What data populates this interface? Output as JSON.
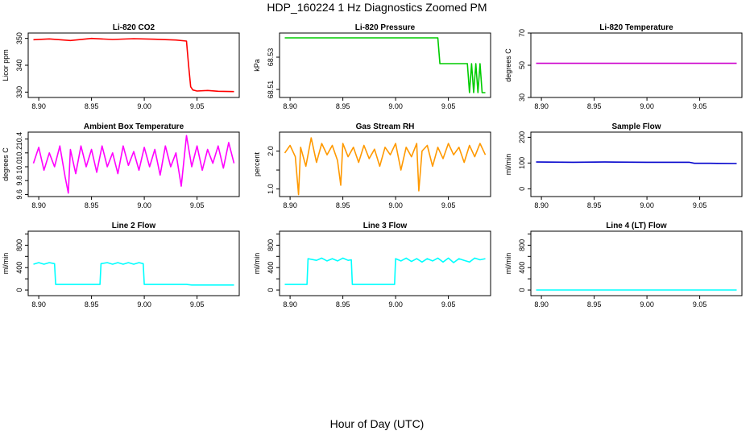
{
  "page": {
    "title": "HDP_160224  1 Hz Diagnostics Zoomed PM",
    "xlabel": "Hour of Day (UTC)"
  },
  "chart_data": [
    {
      "type": "line",
      "title": "Li-820 CO2",
      "ylabel": "Licor ppm",
      "color": "#ff0000",
      "xlim": [
        8.89,
        9.09
      ],
      "xticks": [
        8.9,
        8.95,
        9.0,
        9.05
      ],
      "xtick_labels": [
        "8.90",
        "8.95",
        "9.00",
        "9.05"
      ],
      "ylim": [
        328,
        352
      ],
      "yticks": [
        330,
        340,
        350
      ],
      "ytick_labels": [
        "330",
        "340",
        "350"
      ],
      "series": [
        {
          "x": [
            8.895,
            8.91,
            8.93,
            8.95,
            8.97,
            8.99,
            9.01,
            9.03,
            9.04,
            9.042,
            9.044,
            9.046,
            9.05,
            9.06,
            9.07,
            9.085
          ],
          "y": [
            349.5,
            349.8,
            349.2,
            350.0,
            349.6,
            349.9,
            349.7,
            349.4,
            349.0,
            340.0,
            332.0,
            330.8,
            330.4,
            330.6,
            330.3,
            330.2
          ]
        }
      ]
    },
    {
      "type": "line",
      "title": "Li-820 Pressure",
      "ylabel": "kPa",
      "color": "#00cc00",
      "xlim": [
        8.89,
        9.09
      ],
      "xticks": [
        8.9,
        8.95,
        9.0,
        9.05
      ],
      "xtick_labels": [
        "8.90",
        "8.95",
        "9.00",
        "9.05"
      ],
      "ylim": [
        68.505,
        68.545
      ],
      "yticks": [
        68.51,
        68.53
      ],
      "ytick_labels": [
        "68.51",
        "68.53"
      ],
      "series": [
        {
          "x": [
            8.895,
            8.93,
            8.97,
            9.0,
            9.02,
            9.04,
            9.042,
            9.045,
            9.06,
            9.068,
            9.07,
            9.072,
            9.074,
            9.076,
            9.078,
            9.08,
            9.082,
            9.085
          ],
          "y": [
            68.542,
            68.542,
            68.542,
            68.542,
            68.542,
            68.542,
            68.526,
            68.526,
            68.526,
            68.526,
            68.508,
            68.526,
            68.508,
            68.526,
            68.508,
            68.526,
            68.508,
            68.508
          ]
        }
      ]
    },
    {
      "type": "line",
      "title": "Li-820 Temperature",
      "ylabel": "degrees C",
      "color": "#cc00cc",
      "xlim": [
        8.89,
        9.09
      ],
      "xticks": [
        8.9,
        8.95,
        9.0,
        9.05
      ],
      "xtick_labels": [
        "8.90",
        "8.95",
        "9.00",
        "9.05"
      ],
      "ylim": [
        30,
        70
      ],
      "yticks": [
        30,
        50,
        70
      ],
      "ytick_labels": [
        "30",
        "50",
        "70"
      ],
      "series": [
        {
          "x": [
            8.895,
            9.085
          ],
          "y": [
            51.2,
            51.2
          ]
        }
      ]
    },
    {
      "type": "line",
      "title": "Ambient Box Temperature",
      "ylabel": "degrees C",
      "color": "#ff00ff",
      "xlim": [
        8.89,
        9.09
      ],
      "xticks": [
        8.9,
        8.95,
        9.0,
        9.05
      ],
      "xtick_labels": [
        "8.90",
        "8.95",
        "9.00",
        "9.05"
      ],
      "ylim": [
        9.57,
        10.5
      ],
      "yticks": [
        9.6,
        9.8,
        10.0,
        10.2,
        10.4
      ],
      "ytick_labels": [
        "9.6",
        "9.8",
        "10.0",
        "10.2",
        "10.4"
      ],
      "series": [
        {
          "x": [
            8.895,
            8.9,
            8.905,
            8.91,
            8.915,
            8.92,
            8.925,
            8.928,
            8.93,
            8.935,
            8.94,
            8.945,
            8.95,
            8.955,
            8.96,
            8.965,
            8.97,
            8.975,
            8.98,
            8.985,
            8.99,
            8.995,
            9.0,
            9.005,
            9.01,
            9.015,
            9.02,
            9.025,
            9.03,
            9.035,
            9.04,
            9.045,
            9.05,
            9.055,
            9.06,
            9.065,
            9.07,
            9.075,
            9.08,
            9.085
          ],
          "y": [
            10.05,
            10.28,
            9.95,
            10.2,
            10.0,
            10.3,
            9.85,
            9.62,
            10.25,
            9.9,
            10.3,
            10.0,
            10.25,
            9.92,
            10.3,
            10.0,
            10.2,
            9.9,
            10.3,
            10.02,
            10.22,
            9.95,
            10.28,
            10.0,
            10.25,
            9.88,
            10.3,
            10.0,
            10.2,
            9.72,
            10.45,
            10.0,
            10.3,
            9.95,
            10.25,
            10.05,
            10.3,
            9.98,
            10.35,
            10.05
          ]
        }
      ]
    },
    {
      "type": "line",
      "title": "Gas Stream RH",
      "ylabel": "percent",
      "color": "#ff9900",
      "xlim": [
        8.89,
        9.09
      ],
      "xticks": [
        8.9,
        8.95,
        9.0,
        9.05
      ],
      "xtick_labels": [
        "8.90",
        "8.95",
        "9.00",
        "9.05"
      ],
      "ylim": [
        0.8,
        2.5
      ],
      "yticks": [
        1.0,
        1.5,
        2.0
      ],
      "ytick_labels": [
        "1.0",
        "",
        "2.0"
      ],
      "series": [
        {
          "x": [
            8.895,
            8.9,
            8.905,
            8.908,
            8.91,
            8.915,
            8.92,
            8.925,
            8.93,
            8.935,
            8.94,
            8.945,
            8.948,
            8.95,
            8.955,
            8.96,
            8.965,
            8.97,
            8.975,
            8.98,
            8.985,
            8.99,
            8.995,
            9.0,
            9.005,
            9.01,
            9.015,
            9.02,
            9.022,
            9.025,
            9.03,
            9.035,
            9.04,
            9.045,
            9.05,
            9.055,
            9.06,
            9.065,
            9.07,
            9.075,
            9.08,
            9.085
          ],
          "y": [
            1.95,
            2.15,
            1.85,
            0.85,
            2.1,
            1.6,
            2.35,
            1.7,
            2.2,
            1.9,
            2.15,
            1.75,
            1.1,
            2.2,
            1.85,
            2.1,
            1.7,
            2.15,
            1.8,
            2.05,
            1.6,
            2.1,
            1.9,
            2.2,
            1.5,
            2.1,
            1.85,
            2.2,
            0.95,
            2.0,
            2.15,
            1.6,
            2.1,
            1.8,
            2.2,
            1.9,
            2.1,
            1.7,
            2.15,
            1.85,
            2.2,
            1.9
          ]
        }
      ]
    },
    {
      "type": "line",
      "title": "Sample Flow",
      "ylabel": "ml/min",
      "color": "#0000cc",
      "xlim": [
        8.89,
        9.09
      ],
      "xticks": [
        8.9,
        8.95,
        9.0,
        9.05
      ],
      "xtick_labels": [
        "8.90",
        "8.95",
        "9.00",
        "9.05"
      ],
      "ylim": [
        -30,
        220
      ],
      "yticks": [
        0,
        100,
        200
      ],
      "ytick_labels": [
        "0",
        "100",
        "200"
      ],
      "series": [
        {
          "x": [
            8.895,
            8.93,
            8.96,
            9.0,
            9.04,
            9.045,
            9.06,
            9.085
          ],
          "y": [
            104,
            103,
            104,
            103,
            103,
            99,
            99,
            98
          ]
        }
      ]
    },
    {
      "type": "line",
      "title": "Line 2 Flow",
      "ylabel": "ml/min",
      "color": "#00ffff",
      "xlim": [
        8.89,
        9.09
      ],
      "xticks": [
        8.9,
        8.95,
        9.0,
        9.05
      ],
      "xtick_labels": [
        "8.90",
        "8.95",
        "9.00",
        "9.05"
      ],
      "ylim": [
        -100,
        1050
      ],
      "yticks": [
        0,
        200,
        400,
        600,
        800,
        1000
      ],
      "ytick_labels": [
        "0",
        "",
        "400",
        "",
        "800",
        ""
      ],
      "series": [
        {
          "x": [
            8.895,
            8.9,
            8.905,
            8.91,
            8.915,
            8.916,
            8.92,
            8.94,
            8.958,
            8.959,
            8.965,
            8.97,
            8.975,
            8.98,
            8.985,
            8.99,
            8.995,
            8.999,
            9.0,
            9.02,
            9.04,
            9.045,
            9.06,
            9.085
          ],
          "y": [
            460,
            490,
            460,
            490,
            470,
            100,
            100,
            100,
            100,
            470,
            490,
            460,
            490,
            460,
            490,
            460,
            490,
            470,
            100,
            100,
            100,
            90,
            90,
            90
          ]
        }
      ]
    },
    {
      "type": "line",
      "title": "Line 3 Flow",
      "ylabel": "ml/min",
      "color": "#00ffff",
      "xlim": [
        8.89,
        9.09
      ],
      "xticks": [
        8.9,
        8.95,
        9.0,
        9.05
      ],
      "xtick_labels": [
        "8.90",
        "8.95",
        "9.00",
        "9.05"
      ],
      "ylim": [
        -100,
        1050
      ],
      "yticks": [
        0,
        200,
        400,
        600,
        800,
        1000
      ],
      "ytick_labels": [
        "0",
        "",
        "400",
        "",
        "800",
        ""
      ],
      "series": [
        {
          "x": [
            8.895,
            8.9,
            8.91,
            8.916,
            8.917,
            8.925,
            8.93,
            8.935,
            8.94,
            8.945,
            8.95,
            8.955,
            8.958,
            8.959,
            8.97,
            8.99,
            8.999,
            9.0,
            9.005,
            9.01,
            9.015,
            9.02,
            9.025,
            9.03,
            9.035,
            9.04,
            9.045,
            9.05,
            9.055,
            9.06,
            9.065,
            9.07,
            9.075,
            9.08,
            9.085
          ],
          "y": [
            100,
            100,
            100,
            100,
            560,
            530,
            570,
            520,
            560,
            520,
            570,
            530,
            540,
            100,
            100,
            100,
            100,
            560,
            520,
            570,
            510,
            560,
            500,
            560,
            520,
            570,
            500,
            570,
            490,
            560,
            530,
            500,
            570,
            540,
            560
          ]
        }
      ]
    },
    {
      "type": "line",
      "title": "Line 4 (LT) Flow",
      "ylabel": "ml/min",
      "color": "#00ffff",
      "xlim": [
        8.89,
        9.09
      ],
      "xticks": [
        8.9,
        8.95,
        9.0,
        9.05
      ],
      "xtick_labels": [
        "8.90",
        "8.95",
        "9.00",
        "9.05"
      ],
      "ylim": [
        -100,
        1050
      ],
      "yticks": [
        0,
        200,
        400,
        600,
        800,
        1000
      ],
      "ytick_labels": [
        "0",
        "",
        "400",
        "",
        "800",
        ""
      ],
      "series": [
        {
          "x": [
            8.895,
            9.085
          ],
          "y": [
            0,
            0
          ]
        }
      ]
    }
  ]
}
